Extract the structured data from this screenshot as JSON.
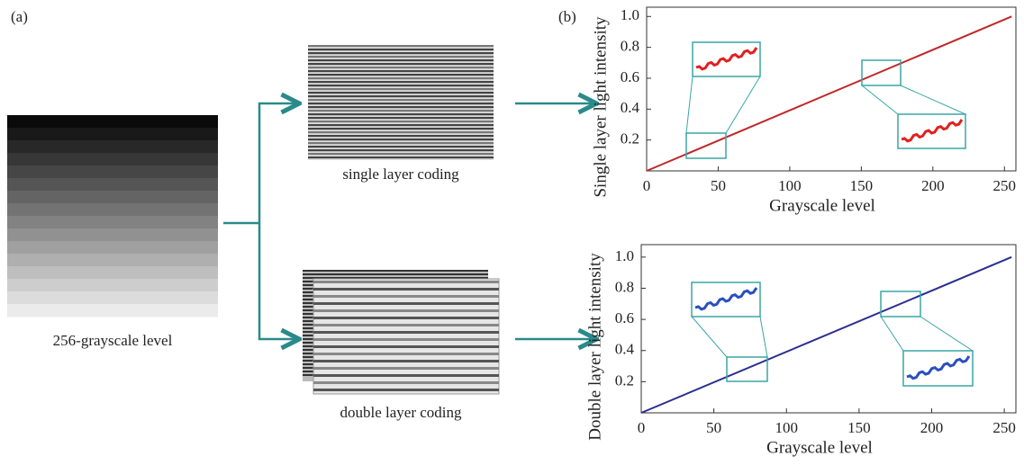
{
  "panels": {
    "a_label": "(a)",
    "b_label": "(b)",
    "source_caption": "256-grayscale level",
    "single_caption": "single layer coding",
    "double_caption": "double layer coding"
  },
  "chart_data": [
    {
      "type": "line",
      "x_label": "Grayscale level",
      "y_label": "Single layer light intensity",
      "x": [
        0,
        255
      ],
      "values": [
        0,
        1
      ],
      "color": "#c0282a",
      "xlim": [
        0,
        258
      ],
      "ylim": [
        0,
        1.06
      ],
      "xticks": [
        0,
        50,
        100,
        150,
        200,
        250
      ],
      "yticks": [
        0.2,
        0.4,
        0.6,
        0.8,
        {
          "value": 1,
          "label": "1.0"
        }
      ]
    },
    {
      "type": "line",
      "x_label": "Grayscale level",
      "y_label": "Double layer light intensity",
      "x": [
        0,
        255
      ],
      "values": [
        0,
        1
      ],
      "color": "#2a2f8f",
      "xlim": [
        0,
        258
      ],
      "ylim": [
        0,
        1.08
      ],
      "xticks": [
        0,
        50,
        100,
        150,
        200,
        250
      ],
      "yticks": [
        0.2,
        0.4,
        0.6,
        0.8,
        {
          "value": 1,
          "label": "1.0"
        }
      ]
    }
  ]
}
